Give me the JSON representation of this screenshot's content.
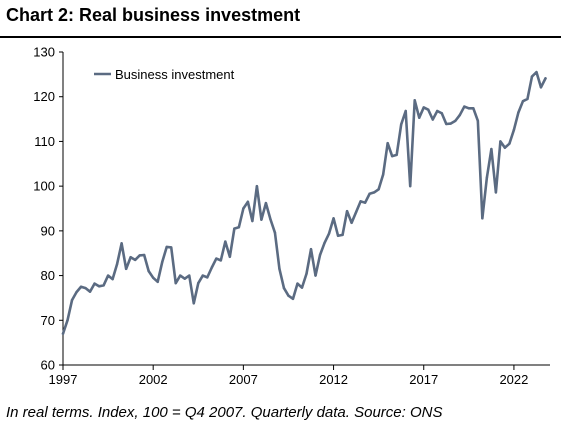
{
  "header": {
    "title": "Chart 2: Real business investment"
  },
  "footer": {
    "note": "In real terms. Index, 100 = Q4 2007. Quarterly data. Source: ONS"
  },
  "chart_data": {
    "type": "line",
    "title": "Chart 2: Real business investment",
    "xlabel": "",
    "ylabel": "",
    "ylim": [
      60,
      130
    ],
    "xlim": [
      1997,
      2024
    ],
    "yticks": [
      60,
      70,
      80,
      90,
      100,
      110,
      120,
      130
    ],
    "xticks": [
      1997,
      2002,
      2007,
      2012,
      2017,
      2022
    ],
    "grid": false,
    "legend": "top-left",
    "x_unit": "year (quarterly)",
    "series": [
      {
        "name": "Business investment",
        "color": "#5b6b82",
        "x": [
          1997.0,
          1997.25,
          1997.5,
          1997.75,
          1998.0,
          1998.25,
          1998.5,
          1998.75,
          1999.0,
          1999.25,
          1999.5,
          1999.75,
          2000.0,
          2000.25,
          2000.5,
          2000.75,
          2001.0,
          2001.25,
          2001.5,
          2001.75,
          2002.0,
          2002.25,
          2002.5,
          2002.75,
          2003.0,
          2003.25,
          2003.5,
          2003.75,
          2004.0,
          2004.25,
          2004.5,
          2004.75,
          2005.0,
          2005.25,
          2005.5,
          2005.75,
          2006.0,
          2006.25,
          2006.5,
          2006.75,
          2007.0,
          2007.25,
          2007.5,
          2007.75,
          2008.0,
          2008.25,
          2008.5,
          2008.75,
          2009.0,
          2009.25,
          2009.5,
          2009.75,
          2010.0,
          2010.25,
          2010.5,
          2010.75,
          2011.0,
          2011.25,
          2011.5,
          2011.75,
          2012.0,
          2012.25,
          2012.5,
          2012.75,
          2013.0,
          2013.25,
          2013.5,
          2013.75,
          2014.0,
          2014.25,
          2014.5,
          2014.75,
          2015.0,
          2015.25,
          2015.5,
          2015.75,
          2016.0,
          2016.25,
          2016.5,
          2016.75,
          2017.0,
          2017.25,
          2017.5,
          2017.75,
          2018.0,
          2018.25,
          2018.5,
          2018.75,
          2019.0,
          2019.25,
          2019.5,
          2019.75,
          2020.0,
          2020.25,
          2020.5,
          2020.75,
          2021.0,
          2021.25,
          2021.5,
          2021.75,
          2022.0,
          2022.25,
          2022.5,
          2022.75,
          2023.0,
          2023.25,
          2023.5,
          2023.75
        ],
        "values": [
          67.0,
          70.0,
          74.5,
          76.3,
          77.5,
          77.2,
          76.4,
          78.2,
          77.6,
          77.8,
          80.0,
          79.2,
          82.6,
          87.2,
          81.5,
          84.1,
          83.5,
          84.5,
          84.6,
          81.0,
          79.5,
          78.6,
          83.0,
          86.4,
          86.3,
          78.3,
          80.0,
          79.3,
          80.0,
          73.8,
          78.3,
          80.0,
          79.6,
          81.8,
          83.8,
          83.4,
          87.6,
          84.2,
          90.5,
          90.8,
          95.0,
          96.5,
          92.2,
          100.0,
          92.5,
          96.2,
          92.6,
          89.6,
          81.5,
          77.2,
          75.5,
          74.8,
          78.2,
          77.3,
          80.4,
          85.9,
          80.0,
          84.6,
          87.3,
          89.4,
          92.8,
          88.9,
          89.1,
          94.4,
          91.8,
          94.2,
          96.6,
          96.3,
          98.3,
          98.6,
          99.3,
          102.6,
          109.6,
          106.7,
          107.0,
          113.8,
          116.8,
          100.0,
          119.2,
          115.3,
          117.6,
          117.1,
          114.9,
          116.8,
          116.3,
          113.9,
          114.0,
          114.6,
          115.9,
          117.8,
          117.4,
          117.4,
          114.6,
          92.8,
          101.9,
          108.3,
          98.6,
          110.0,
          108.6,
          109.5,
          112.6,
          116.5,
          119.0,
          119.5,
          124.5,
          125.5,
          122.1,
          124.1
        ]
      }
    ]
  }
}
